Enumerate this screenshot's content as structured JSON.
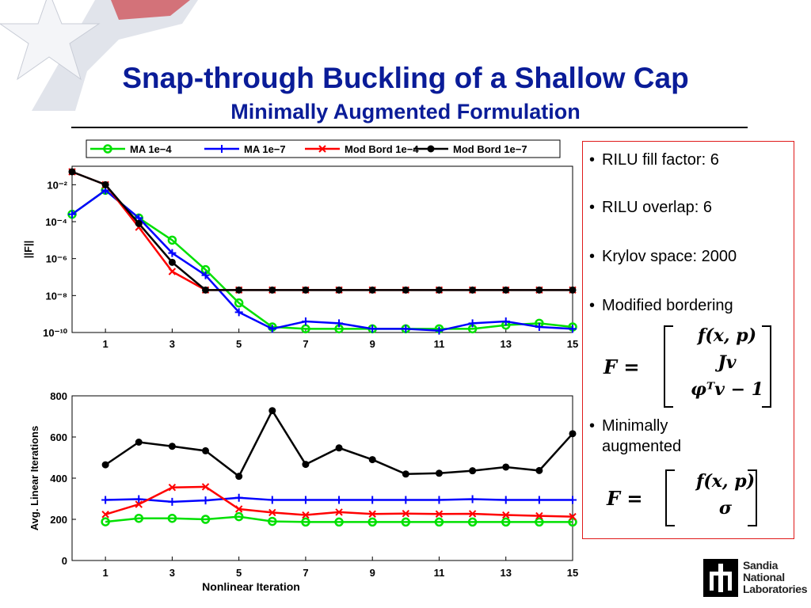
{
  "slide": {
    "title": "Snap-through Buckling of a Shallow Cap",
    "subtitle": "Minimally Augmented Formulation"
  },
  "bullets": [
    "RILU fill factor:  6",
    "RILU overlap: 6",
    "Krylov space:  2000",
    "Modified bordering"
  ],
  "bullet_last": {
    "line1": "Minimally",
    "line2": "augmented"
  },
  "equation1": {
    "lhs": "F =",
    "rows": [
      "f(x, p)",
      "Jv",
      "φᵀv − 1"
    ]
  },
  "equation2": {
    "lhs": "F =",
    "rows": [
      "f(x, p)",
      "σ"
    ]
  },
  "logo": {
    "line1": "Sandia",
    "line2": "National",
    "line3": "Laboratories"
  },
  "colors": {
    "title": "#0a1c98",
    "ma4": "#00e000",
    "ma7": "#0000ff",
    "mb4": "#ff0000",
    "mb7": "#000000"
  },
  "chart_data": [
    {
      "type": "line",
      "ylabel": "||F||",
      "xlabel": "",
      "yscale": "log",
      "xlim": [
        0,
        15
      ],
      "ylim": [
        1e-10,
        0.1
      ],
      "xticks": [
        1,
        3,
        5,
        7,
        9,
        11,
        13,
        15
      ],
      "yticks": [
        "10⁻²",
        "10⁻⁴",
        "10⁻⁶",
        "10⁻⁸",
        "10⁻¹⁰"
      ],
      "ytick_exps": [
        -2,
        -4,
        -6,
        -8,
        -10
      ],
      "legend": "top",
      "x": [
        0,
        1,
        2,
        3,
        4,
        5,
        6,
        7,
        8,
        9,
        10,
        11,
        12,
        13,
        14,
        15
      ],
      "series": [
        {
          "name": "MA 1e−4",
          "color": "#00e000",
          "marker": "circle",
          "log10_values": [
            -3.6,
            -2.3,
            -3.8,
            -5.0,
            -6.6,
            -8.4,
            -9.7,
            -9.8,
            -9.8,
            -9.8,
            -9.8,
            -9.8,
            -9.8,
            -9.6,
            -9.5,
            -9.7
          ]
        },
        {
          "name": "MA 1e−7",
          "color": "#0000ff",
          "marker": "plus",
          "log10_values": [
            -3.6,
            -2.3,
            -3.8,
            -5.7,
            -6.9,
            -8.9,
            -9.8,
            -9.4,
            -9.5,
            -9.8,
            -9.8,
            -9.9,
            -9.5,
            -9.4,
            -9.7,
            -9.8
          ]
        },
        {
          "name": "Mod Bord 1e−4",
          "color": "#ff0000",
          "marker": "x",
          "log10_values": [
            -1.3,
            -2.0,
            -4.3,
            -6.7,
            -7.7,
            -7.7,
            -7.7,
            -7.7,
            -7.7,
            -7.7,
            -7.7,
            -7.7,
            -7.7,
            -7.7,
            -7.7,
            -7.7
          ]
        },
        {
          "name": "Mod Bord 1e−7",
          "color": "#000000",
          "marker": "dot",
          "log10_values": [
            -1.3,
            -2.0,
            -4.1,
            -6.2,
            -7.7,
            -7.7,
            -7.7,
            -7.7,
            -7.7,
            -7.7,
            -7.7,
            -7.7,
            -7.7,
            -7.7,
            -7.7,
            -7.7
          ]
        }
      ]
    },
    {
      "type": "line",
      "ylabel": "Avg. Linear Iterations",
      "xlabel": "Nonlinear Iteration",
      "xlim": [
        0,
        15
      ],
      "ylim": [
        0,
        800
      ],
      "xticks": [
        1,
        3,
        5,
        7,
        9,
        11,
        13,
        15
      ],
      "yticks": [
        0,
        200,
        400,
        600,
        800
      ],
      "x": [
        1,
        2,
        3,
        4,
        5,
        6,
        7,
        8,
        9,
        10,
        11,
        12,
        13,
        14,
        15
      ],
      "series": [
        {
          "name": "MA 1e−4",
          "color": "#00e000",
          "marker": "circle",
          "values": [
            188,
            205,
            205,
            200,
            213,
            190,
            187,
            187,
            187,
            187,
            187,
            187,
            187,
            187,
            187
          ]
        },
        {
          "name": "MA 1e−7",
          "color": "#0000ff",
          "marker": "plus",
          "values": [
            294,
            298,
            285,
            292,
            305,
            294,
            294,
            294,
            294,
            294,
            294,
            298,
            294,
            294,
            294
          ]
        },
        {
          "name": "Mod Bord 1e−4",
          "color": "#ff0000",
          "marker": "x",
          "values": [
            224,
            273,
            355,
            358,
            250,
            233,
            221,
            235,
            226,
            228,
            226,
            227,
            221,
            217,
            213
          ]
        },
        {
          "name": "Mod Bord 1e−7",
          "color": "#000000",
          "marker": "dot",
          "values": [
            465,
            575,
            555,
            533,
            409,
            728,
            467,
            547,
            490,
            420,
            424,
            436,
            454,
            437,
            616
          ]
        }
      ]
    }
  ]
}
